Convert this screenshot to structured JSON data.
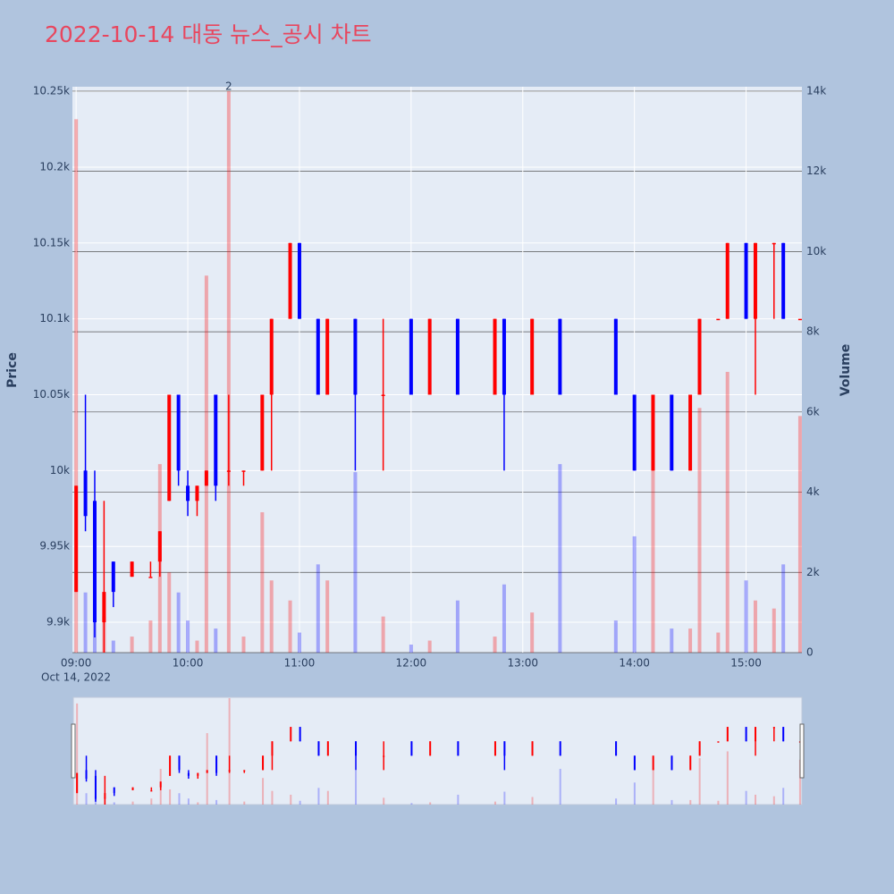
{
  "chart_data": {
    "type": "candlestick",
    "title": "2022-10-14 대동 뉴스_공시 차트",
    "x": [
      "09:00",
      "09:05",
      "09:10",
      "09:15",
      "09:20",
      "09:30",
      "09:40",
      "09:45",
      "09:50",
      "09:55",
      "10:00",
      "10:05",
      "10:10",
      "10:15",
      "10:22",
      "10:30",
      "10:40",
      "10:45",
      "10:55",
      "11:00",
      "11:10",
      "11:15",
      "11:30",
      "11:45",
      "12:00",
      "12:10",
      "12:25",
      "12:45",
      "12:50",
      "13:05",
      "13:20",
      "13:50",
      "14:00",
      "14:10",
      "14:20",
      "14:30",
      "14:35",
      "14:45",
      "14:50",
      "15:00",
      "15:05",
      "15:15",
      "15:20",
      "15:29"
    ],
    "open": [
      9920,
      10000,
      9980,
      9900,
      9940,
      9930,
      9930,
      9940,
      9980,
      10050,
      9990,
      9980,
      9990,
      10050,
      10000,
      10000,
      10000,
      10050,
      10100,
      10150,
      10100,
      10050,
      10100,
      10050,
      10100,
      10050,
      10100,
      10050,
      10100,
      10050,
      10100,
      10100,
      10050,
      10000,
      10050,
      10000,
      10050,
      10100,
      10100,
      10150,
      10100,
      10150,
      10150,
      10100
    ],
    "high": [
      9990,
      10050,
      10000,
      9980,
      9940,
      9940,
      9940,
      9960,
      10050,
      10050,
      10000,
      9990,
      10000,
      10050,
      10050,
      10000,
      10050,
      10100,
      10150,
      10150,
      10100,
      10100,
      10100,
      10100,
      10100,
      10100,
      10100,
      10100,
      10100,
      10100,
      10100,
      10100,
      10050,
      10050,
      10050,
      10050,
      10100,
      10100,
      10150,
      10150,
      10150,
      10150,
      10150,
      10100
    ],
    "low": [
      9920,
      9960,
      9890,
      9880,
      9910,
      9930,
      9930,
      9930,
      9980,
      9990,
      9970,
      9970,
      9990,
      9980,
      9990,
      9990,
      10000,
      10000,
      10100,
      10100,
      10050,
      10050,
      10000,
      10000,
      10050,
      10050,
      10050,
      10050,
      10000,
      10050,
      10050,
      10050,
      10000,
      10000,
      10000,
      10000,
      10050,
      10100,
      10100,
      10100,
      10050,
      10100,
      10100,
      10100
    ],
    "close": [
      9990,
      9970,
      9900,
      9920,
      9920,
      9940,
      9930,
      9960,
      10050,
      10000,
      9980,
      9990,
      10000,
      9990,
      10000,
      10000,
      10050,
      10100,
      10150,
      10100,
      10050,
      10100,
      10050,
      10050,
      10050,
      10100,
      10050,
      10100,
      10050,
      10100,
      10050,
      10050,
      10000,
      10050,
      10000,
      10050,
      10100,
      10100,
      10150,
      10100,
      10150,
      10150,
      10100,
      10100
    ],
    "volume": [
      13300,
      1500,
      1200,
      900,
      300,
      400,
      800,
      4700,
      2000,
      1500,
      800,
      300,
      9400,
      600,
      14000,
      400,
      3500,
      1800,
      1300,
      500,
      2200,
      1800,
      4500,
      900,
      200,
      300,
      1300,
      400,
      1700,
      1000,
      4700,
      800,
      2900,
      4800,
      600,
      600,
      6100,
      500,
      7000,
      1800,
      1300,
      1100,
      2200,
      5900
    ],
    "increasing_color": "#ff0000",
    "decreasing_color": "#0000ff",
    "xlim": [
      "08:58",
      "15:30"
    ],
    "xticks": [
      "09:00",
      "10:00",
      "11:00",
      "12:00",
      "13:00",
      "14:00",
      "15:00"
    ],
    "x_date_label": "Oct 14, 2022",
    "yaxis_title": "Price",
    "ylim": [
      9880,
      10253
    ],
    "yticks": [
      {
        "value": 9900,
        "label": "9.9k"
      },
      {
        "value": 9950,
        "label": "9.95k"
      },
      {
        "value": 10000,
        "label": "10k"
      },
      {
        "value": 10050,
        "label": "10.05k"
      },
      {
        "value": 10100,
        "label": "10.1k"
      },
      {
        "value": 10150,
        "label": "10.15k"
      },
      {
        "value": 10200,
        "label": "10.2k"
      },
      {
        "value": 10250,
        "label": "10.25k"
      }
    ],
    "y2axis_title": "Volume",
    "y2lim": [
      0,
      14110
    ],
    "y2ticks": [
      0,
      {
        "value": 2000,
        "label": "2k"
      },
      {
        "value": 4000,
        "label": "4k"
      },
      {
        "value": 6000,
        "label": "6k"
      },
      {
        "value": 8000,
        "label": "8k"
      },
      {
        "value": 10000,
        "label": "10k"
      },
      {
        "value": 12000,
        "label": "12k"
      },
      {
        "value": 14000,
        "label": "14k"
      }
    ],
    "annotation": {
      "x": "10:22",
      "text": "2"
    },
    "grid": true,
    "rangeslider": true
  }
}
